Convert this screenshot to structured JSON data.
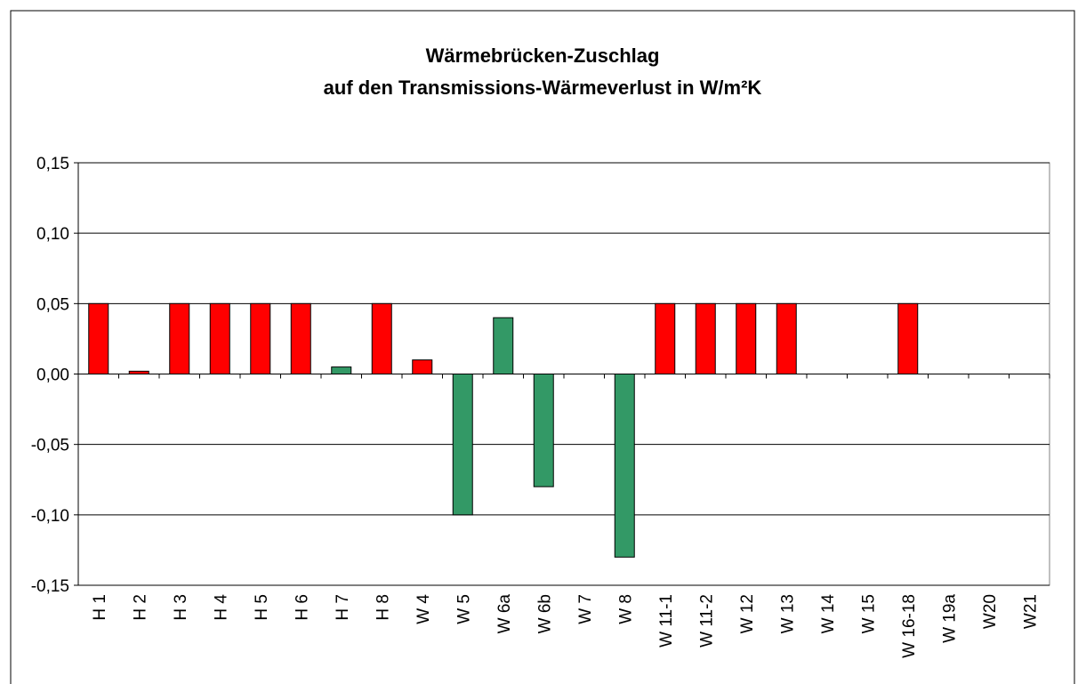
{
  "chart_data": {
    "type": "bar",
    "title": [
      "Wärmebrücken-Zuschlag",
      "auf den Transmissions-Wärmeverlust in W/m²K"
    ],
    "categories": [
      "H 1",
      "H 2",
      "H 3",
      "H 4",
      "H 5",
      "H 6",
      "H 7",
      "H 8",
      "W 4",
      "W 5",
      "W 6a",
      "W 6b",
      "W 7",
      "W 8",
      "W 11-1",
      "W 11-2",
      "W 12",
      "W 13",
      "W 14",
      "W 15",
      "W 16-18",
      "W 19a",
      "W20",
      "W21"
    ],
    "values": [
      0.05,
      0.002,
      0.05,
      0.05,
      0.05,
      0.05,
      0.005,
      0.05,
      0.01,
      -0.1,
      0.04,
      -0.08,
      0,
      -0.13,
      0.05,
      0.05,
      0.05,
      0.05,
      0,
      0,
      0.05,
      0,
      0,
      0
    ],
    "colors": [
      "#ff0000",
      "#ff0000",
      "#ff0000",
      "#ff0000",
      "#ff0000",
      "#ff0000",
      "#339966",
      "#ff0000",
      "#ff0000",
      "#339966",
      "#339966",
      "#339966",
      "#339966",
      "#339966",
      "#ff0000",
      "#ff0000",
      "#ff0000",
      "#ff0000",
      "#ff0000",
      "#ff0000",
      "#ff0000",
      "#ff0000",
      "#ff0000",
      "#ff0000"
    ],
    "ylim": [
      -0.15,
      0.15
    ],
    "yticks": [
      {
        "value": -0.15,
        "label": "-0,15"
      },
      {
        "value": -0.1,
        "label": "-0,10"
      },
      {
        "value": -0.05,
        "label": "-0,05"
      },
      {
        "value": 0,
        "label": "0,00"
      },
      {
        "value": 0.05,
        "label": "0,05"
      },
      {
        "value": 0.1,
        "label": "0,10"
      },
      {
        "value": 0.15,
        "label": "0,15"
      }
    ],
    "grid": true
  }
}
